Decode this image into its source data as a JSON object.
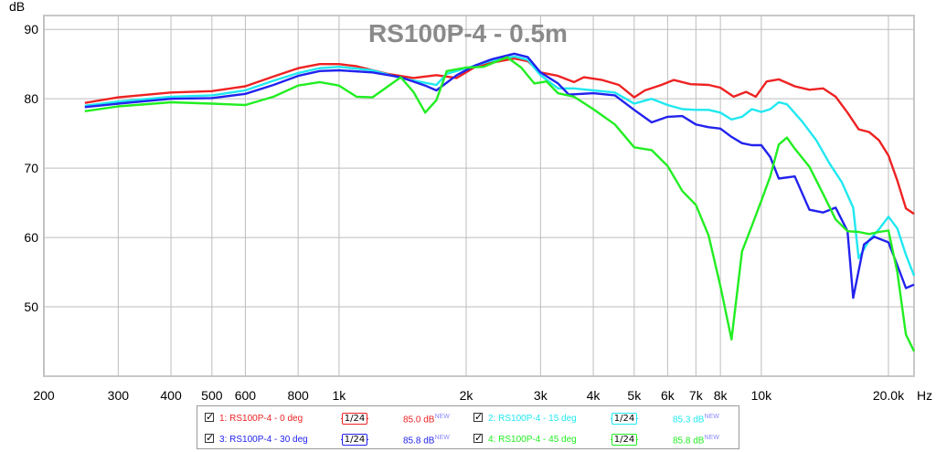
{
  "chart_data": {
    "type": "line",
    "title": "RS100P-4 - 0.5m",
    "ylabel": "dB",
    "xunit": "Hz",
    "xscale": "log",
    "xlim": [
      200,
      23000
    ],
    "ylim": [
      40,
      92
    ],
    "yticks": [
      50,
      60,
      70,
      80,
      90
    ],
    "xticks": [
      {
        "v": 200,
        "label": "200"
      },
      {
        "v": 300,
        "label": "300"
      },
      {
        "v": 400,
        "label": "400"
      },
      {
        "v": 500,
        "label": "500"
      },
      {
        "v": 600,
        "label": "600"
      },
      {
        "v": 800,
        "label": "800"
      },
      {
        "v": 1000,
        "label": "1k"
      },
      {
        "v": 2000,
        "label": "2k"
      },
      {
        "v": 3000,
        "label": "3k"
      },
      {
        "v": 4000,
        "label": "4k"
      },
      {
        "v": 5000,
        "label": "5k"
      },
      {
        "v": 6000,
        "label": "6k"
      },
      {
        "v": 7000,
        "label": "7k"
      },
      {
        "v": 8000,
        "label": "8k"
      },
      {
        "v": 10000,
        "label": "10k"
      },
      {
        "v": 20000,
        "label": "20.0k"
      }
    ],
    "grid": true,
    "series": [
      {
        "name": "1: RS100P-4 - 0 deg",
        "color": "#ee2222",
        "smoothing": "1/24",
        "level": "85.0 dB",
        "points": [
          [
            250,
            79.4
          ],
          [
            300,
            80.2
          ],
          [
            400,
            80.9
          ],
          [
            500,
            81.1
          ],
          [
            600,
            81.8
          ],
          [
            700,
            83.2
          ],
          [
            800,
            84.4
          ],
          [
            900,
            85.0
          ],
          [
            1000,
            85.0
          ],
          [
            1100,
            84.7
          ],
          [
            1300,
            83.6
          ],
          [
            1500,
            83.0
          ],
          [
            1700,
            83.4
          ],
          [
            1900,
            83.0
          ],
          [
            2100,
            84.6
          ],
          [
            2300,
            85.2
          ],
          [
            2600,
            85.8
          ],
          [
            2800,
            85.4
          ],
          [
            3000,
            83.8
          ],
          [
            3300,
            83.3
          ],
          [
            3600,
            82.4
          ],
          [
            3800,
            83.1
          ],
          [
            4200,
            82.7
          ],
          [
            4600,
            82.0
          ],
          [
            5000,
            80.2
          ],
          [
            5300,
            81.2
          ],
          [
            5800,
            82.0
          ],
          [
            6200,
            82.7
          ],
          [
            6800,
            82.1
          ],
          [
            7500,
            82.0
          ],
          [
            8000,
            81.6
          ],
          [
            8600,
            80.3
          ],
          [
            9200,
            81.0
          ],
          [
            9700,
            80.3
          ],
          [
            10300,
            82.5
          ],
          [
            11000,
            82.8
          ],
          [
            12000,
            81.8
          ],
          [
            13000,
            81.3
          ],
          [
            14000,
            81.5
          ],
          [
            15000,
            80.3
          ],
          [
            16000,
            78.0
          ],
          [
            17000,
            75.6
          ],
          [
            18000,
            75.2
          ],
          [
            19000,
            74.0
          ],
          [
            20000,
            71.8
          ],
          [
            21000,
            68.2
          ],
          [
            22000,
            64.2
          ],
          [
            23000,
            63.4
          ]
        ]
      },
      {
        "name": "2: RS100P-4 - 15 deg",
        "color": "#20e8f0",
        "smoothing": "1/24",
        "level": "85.3 dB",
        "points": [
          [
            250,
            79.0
          ],
          [
            300,
            79.6
          ],
          [
            400,
            80.3
          ],
          [
            500,
            80.5
          ],
          [
            600,
            81.2
          ],
          [
            700,
            82.6
          ],
          [
            800,
            83.7
          ],
          [
            900,
            84.4
          ],
          [
            1000,
            84.6
          ],
          [
            1200,
            84.1
          ],
          [
            1400,
            83.0
          ],
          [
            1600,
            82.3
          ],
          [
            1700,
            82.0
          ],
          [
            1800,
            83.6
          ],
          [
            2000,
            84.4
          ],
          [
            2300,
            85.5
          ],
          [
            2600,
            86.1
          ],
          [
            2800,
            85.6
          ],
          [
            3000,
            83.4
          ],
          [
            3300,
            81.5
          ],
          [
            3600,
            81.5
          ],
          [
            4000,
            81.2
          ],
          [
            4500,
            80.9
          ],
          [
            5000,
            79.3
          ],
          [
            5500,
            80.0
          ],
          [
            6000,
            79.1
          ],
          [
            6500,
            78.5
          ],
          [
            7000,
            78.4
          ],
          [
            7500,
            78.4
          ],
          [
            8000,
            78.0
          ],
          [
            8500,
            77.0
          ],
          [
            9000,
            77.4
          ],
          [
            9500,
            78.5
          ],
          [
            10000,
            78.1
          ],
          [
            10500,
            78.5
          ],
          [
            11000,
            79.5
          ],
          [
            11500,
            79.2
          ],
          [
            12500,
            76.7
          ],
          [
            13500,
            74.0
          ],
          [
            14500,
            70.7
          ],
          [
            15500,
            68.0
          ],
          [
            16500,
            64.3
          ],
          [
            17000,
            57.0
          ],
          [
            18000,
            59.6
          ],
          [
            19000,
            61.2
          ],
          [
            20000,
            63.0
          ],
          [
            21000,
            61.3
          ],
          [
            22000,
            57.5
          ],
          [
            23000,
            54.5
          ]
        ]
      },
      {
        "name": "3: RS100P-4 - 30 deg",
        "color": "#2222ee",
        "smoothing": "1/24",
        "level": "85.8 dB",
        "points": [
          [
            250,
            78.8
          ],
          [
            300,
            79.3
          ],
          [
            400,
            80.0
          ],
          [
            500,
            80.1
          ],
          [
            600,
            80.7
          ],
          [
            700,
            82.0
          ],
          [
            800,
            83.3
          ],
          [
            900,
            84.0
          ],
          [
            1000,
            84.1
          ],
          [
            1200,
            83.8
          ],
          [
            1400,
            83.1
          ],
          [
            1600,
            81.9
          ],
          [
            1700,
            81.2
          ],
          [
            1900,
            83.4
          ],
          [
            2100,
            84.8
          ],
          [
            2300,
            85.7
          ],
          [
            2600,
            86.5
          ],
          [
            2800,
            86.0
          ],
          [
            3000,
            83.8
          ],
          [
            3300,
            82.2
          ],
          [
            3500,
            80.6
          ],
          [
            4000,
            80.8
          ],
          [
            4500,
            80.5
          ],
          [
            5000,
            78.4
          ],
          [
            5500,
            76.6
          ],
          [
            6000,
            77.4
          ],
          [
            6500,
            77.5
          ],
          [
            7000,
            76.3
          ],
          [
            7500,
            75.9
          ],
          [
            8000,
            75.7
          ],
          [
            8500,
            74.5
          ],
          [
            9000,
            73.6
          ],
          [
            9500,
            73.3
          ],
          [
            10000,
            73.3
          ],
          [
            10500,
            71.6
          ],
          [
            11000,
            68.5
          ],
          [
            12000,
            68.8
          ],
          [
            13000,
            64.0
          ],
          [
            14000,
            63.6
          ],
          [
            15000,
            64.3
          ],
          [
            16000,
            60.9
          ],
          [
            16500,
            51.3
          ],
          [
            17500,
            59.0
          ],
          [
            18500,
            60.1
          ],
          [
            20000,
            59.3
          ],
          [
            21000,
            56.0
          ],
          [
            22000,
            52.7
          ],
          [
            23000,
            53.2
          ]
        ]
      },
      {
        "name": "4: RS100P-4 - 45 deg",
        "color": "#22ee22",
        "smoothing": "1/24",
        "level": "85.8 dB",
        "points": [
          [
            250,
            78.2
          ],
          [
            300,
            78.9
          ],
          [
            400,
            79.5
          ],
          [
            500,
            79.3
          ],
          [
            600,
            79.1
          ],
          [
            700,
            80.3
          ],
          [
            800,
            81.9
          ],
          [
            900,
            82.4
          ],
          [
            1000,
            81.9
          ],
          [
            1100,
            80.3
          ],
          [
            1200,
            80.2
          ],
          [
            1400,
            83.1
          ],
          [
            1500,
            81.0
          ],
          [
            1600,
            78.0
          ],
          [
            1700,
            79.8
          ],
          [
            1800,
            84.0
          ],
          [
            2000,
            84.5
          ],
          [
            2200,
            84.6
          ],
          [
            2500,
            86.0
          ],
          [
            2700,
            84.5
          ],
          [
            2900,
            82.2
          ],
          [
            3100,
            82.5
          ],
          [
            3300,
            80.8
          ],
          [
            3600,
            80.3
          ],
          [
            4000,
            78.5
          ],
          [
            4500,
            76.3
          ],
          [
            5000,
            73.0
          ],
          [
            5500,
            72.6
          ],
          [
            6000,
            70.3
          ],
          [
            6500,
            66.7
          ],
          [
            7000,
            64.7
          ],
          [
            7500,
            60.3
          ],
          [
            8000,
            53.0
          ],
          [
            8500,
            45.3
          ],
          [
            9000,
            58.0
          ],
          [
            9500,
            61.7
          ],
          [
            10000,
            65.3
          ],
          [
            10500,
            68.8
          ],
          [
            11000,
            73.4
          ],
          [
            11500,
            74.4
          ],
          [
            12000,
            72.8
          ],
          [
            13000,
            70.2
          ],
          [
            14000,
            66.3
          ],
          [
            15000,
            62.6
          ],
          [
            16000,
            60.9
          ],
          [
            17000,
            60.8
          ],
          [
            18000,
            60.5
          ],
          [
            19000,
            60.8
          ],
          [
            20000,
            61.0
          ],
          [
            21000,
            55.0
          ],
          [
            22000,
            46.0
          ],
          [
            23000,
            43.6
          ]
        ]
      }
    ]
  }
}
